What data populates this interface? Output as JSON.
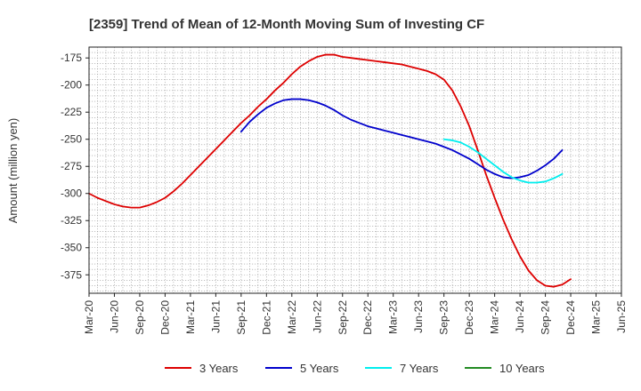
{
  "chart_data": {
    "type": "line",
    "title": "[2359]  Trend of Mean of 12-Month Moving Sum of Investing CF",
    "xlabel": "",
    "ylabel": "Amount (million yen)",
    "ylim": [
      -392,
      -165
    ],
    "yticks": [
      -175,
      -200,
      -225,
      -250,
      -275,
      -300,
      -325,
      -350,
      -375
    ],
    "xticks": [
      "Mar-20",
      "Jun-20",
      "Sep-20",
      "Dec-20",
      "Mar-21",
      "Jun-21",
      "Sep-21",
      "Dec-21",
      "Mar-22",
      "Jun-22",
      "Sep-22",
      "Dec-22",
      "Mar-23",
      "Jun-23",
      "Sep-23",
      "Dec-23",
      "Mar-24",
      "Jun-24",
      "Sep-24",
      "Dec-24",
      "Mar-25",
      "Jun-25"
    ],
    "grid": true,
    "legend_position": "bottom",
    "series": [
      {
        "name": "3 Years",
        "color": "#dd0000",
        "start_index": 0,
        "values": [
          -300,
          -304,
          -307,
          -310,
          -312,
          -313,
          -313,
          -311,
          -308,
          -304,
          -298,
          -291,
          -283,
          -275,
          -267,
          -259,
          -251,
          -243,
          -235,
          -228,
          -220,
          -213,
          -205,
          -198,
          -190,
          -183,
          -178,
          -174,
          -172,
          -172,
          -174,
          -175,
          -176,
          -177,
          -178,
          -179,
          -180,
          -181,
          -183,
          -185,
          -187,
          -190,
          -195,
          -205,
          -220,
          -238,
          -260,
          -283,
          -304,
          -324,
          -342,
          -358,
          -371,
          -380,
          -385,
          -386,
          -384,
          -379
        ]
      },
      {
        "name": "5 Years",
        "color": "#0000cc",
        "start_index": 18,
        "values": [
          -243,
          -234,
          -227,
          -221,
          -217,
          -214,
          -213,
          -213,
          -214,
          -216,
          -219,
          -223,
          -228,
          -232,
          -235,
          -238,
          -240,
          -242,
          -244,
          -246,
          -248,
          -250,
          -252,
          -254,
          -257,
          -260,
          -264,
          -268,
          -273,
          -278,
          -282,
          -285,
          -286,
          -285,
          -283,
          -279,
          -274,
          -268,
          -260
        ]
      },
      {
        "name": "7 Years",
        "color": "#00eeee",
        "start_index": 42,
        "values": [
          -250,
          -251,
          -253,
          -257,
          -262,
          -268,
          -274,
          -280,
          -285,
          -288,
          -290,
          -290,
          -289,
          -286,
          -282
        ]
      },
      {
        "name": "10 Years",
        "color": "#228b22",
        "start_index": 0,
        "values": []
      }
    ]
  }
}
